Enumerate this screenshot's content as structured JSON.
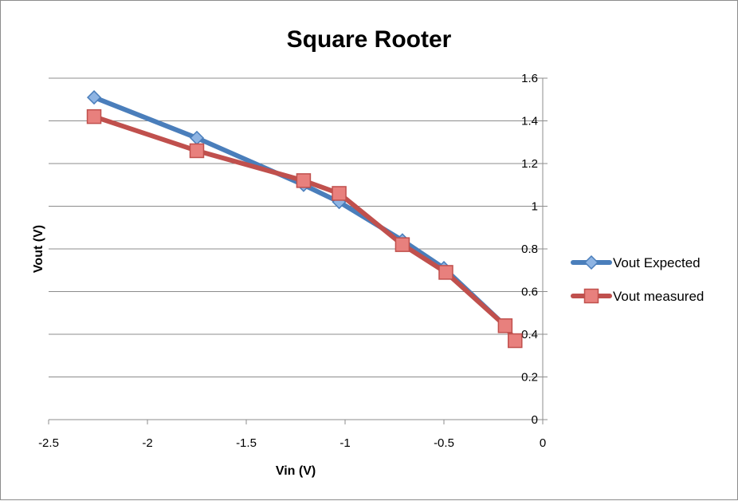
{
  "chart_data": {
    "type": "line",
    "title": "Square Rooter",
    "xlabel": "Vin (V)",
    "ylabel": "Vout (V)",
    "xlim": [
      -2.5,
      0
    ],
    "ylim": [
      0,
      1.6
    ],
    "x_ticks": [
      "-2.5",
      "-2",
      "-1.5",
      "-1",
      "-0.5",
      "0"
    ],
    "y_ticks": [
      "0",
      "0.2",
      "0.4",
      "0.6",
      "0.8",
      "1",
      "1.2",
      "1.4",
      "1.6"
    ],
    "y_axis_side": "right",
    "grid": "horizontal",
    "legend_position": "right",
    "series": [
      {
        "name": "Vout Expected",
        "color": "#4a7ebb",
        "marker": "diamond",
        "x": [
          -2.27,
          -1.75,
          -1.21,
          -1.03,
          -0.71,
          -0.5,
          -0.19
        ],
        "y": [
          1.51,
          1.32,
          1.1,
          1.02,
          0.84,
          0.71,
          0.44
        ]
      },
      {
        "name": "Vout measured",
        "color": "#c0504d",
        "marker": "square",
        "x": [
          -2.27,
          -1.75,
          -1.21,
          -1.03,
          -0.71,
          -0.49,
          -0.19,
          -0.14
        ],
        "y": [
          1.42,
          1.26,
          1.12,
          1.06,
          0.82,
          0.69,
          0.44,
          0.37
        ]
      }
    ]
  }
}
